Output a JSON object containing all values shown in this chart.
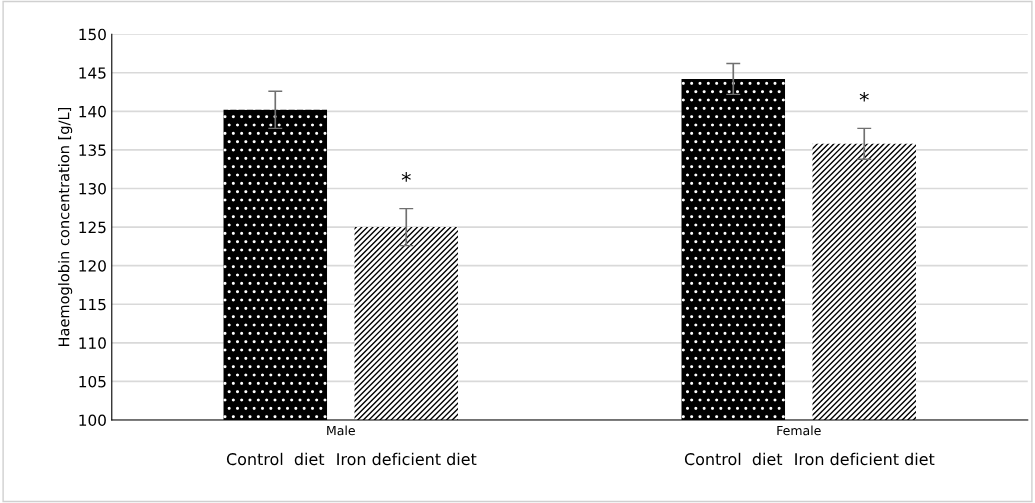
{
  "chart_data": {
    "type": "bar",
    "ylabel": "Haemoglobin concentration [g/L]",
    "categories": [
      "Male",
      "Female"
    ],
    "series": [
      {
        "name": "Control  diet",
        "color": "#000000",
        "values": [
          140.2,
          144.2
        ],
        "errors": [
          2.4,
          2.0
        ]
      },
      {
        "name": "Iron deficient diet",
        "color": "#ffffff",
        "values": [
          125.0,
          135.8
        ],
        "errors": [
          2.4,
          2.0
        ]
      }
    ],
    "ylim": [
      100,
      150
    ],
    "yticks": [
      100,
      105,
      110,
      115,
      120,
      125,
      130,
      135,
      140,
      145,
      150
    ],
    "grid": "y",
    "legend": false,
    "annotations": [
      "*",
      "*"
    ]
  }
}
